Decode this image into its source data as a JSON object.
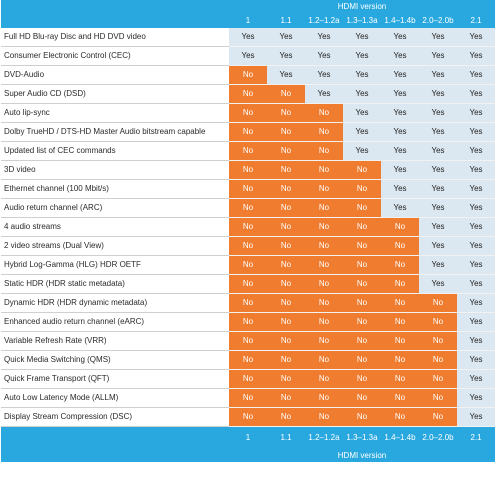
{
  "header_title": "HDMI version",
  "footer_title": "HDMI version",
  "versions": [
    "1",
    "1.1",
    "1.2–1.2a",
    "1.3–1.3a",
    "1.4–1.4b",
    "2.0–2.0b",
    "2.1"
  ],
  "colors": {
    "header": "#29a8df",
    "yes": "#dce8f1",
    "no": "#ef7c2f"
  },
  "rows": [
    {
      "feature": "Full HD Blu-ray Disc and HD DVD video",
      "values": [
        "Yes",
        "Yes",
        "Yes",
        "Yes",
        "Yes",
        "Yes",
        "Yes"
      ]
    },
    {
      "feature": "Consumer Electronic Control (CEC)",
      "values": [
        "Yes",
        "Yes",
        "Yes",
        "Yes",
        "Yes",
        "Yes",
        "Yes"
      ]
    },
    {
      "feature": "DVD-Audio",
      "values": [
        "No",
        "Yes",
        "Yes",
        "Yes",
        "Yes",
        "Yes",
        "Yes"
      ]
    },
    {
      "feature": "Super Audio CD (DSD)",
      "values": [
        "No",
        "No",
        "Yes",
        "Yes",
        "Yes",
        "Yes",
        "Yes"
      ]
    },
    {
      "feature": "Auto lip-sync",
      "values": [
        "No",
        "No",
        "No",
        "Yes",
        "Yes",
        "Yes",
        "Yes"
      ]
    },
    {
      "feature": "Dolby TrueHD / DTS-HD Master Audio bitstream capable",
      "values": [
        "No",
        "No",
        "No",
        "Yes",
        "Yes",
        "Yes",
        "Yes"
      ]
    },
    {
      "feature": "Updated list of CEC commands",
      "values": [
        "No",
        "No",
        "No",
        "Yes",
        "Yes",
        "Yes",
        "Yes"
      ]
    },
    {
      "feature": "3D video",
      "values": [
        "No",
        "No",
        "No",
        "No",
        "Yes",
        "Yes",
        "Yes"
      ]
    },
    {
      "feature": "Ethernet channel (100 Mbit/s)",
      "values": [
        "No",
        "No",
        "No",
        "No",
        "Yes",
        "Yes",
        "Yes"
      ]
    },
    {
      "feature": "Audio return channel (ARC)",
      "values": [
        "No",
        "No",
        "No",
        "No",
        "Yes",
        "Yes",
        "Yes"
      ]
    },
    {
      "feature": "4 audio streams",
      "values": [
        "No",
        "No",
        "No",
        "No",
        "No",
        "Yes",
        "Yes"
      ]
    },
    {
      "feature": "2 video streams (Dual View)",
      "values": [
        "No",
        "No",
        "No",
        "No",
        "No",
        "Yes",
        "Yes"
      ]
    },
    {
      "feature": "Hybrid Log-Gamma (HLG) HDR OETF",
      "values": [
        "No",
        "No",
        "No",
        "No",
        "No",
        "Yes",
        "Yes"
      ]
    },
    {
      "feature": "Static HDR (HDR static metadata)",
      "values": [
        "No",
        "No",
        "No",
        "No",
        "No",
        "Yes",
        "Yes"
      ]
    },
    {
      "feature": "Dynamic HDR (HDR dynamic metadata)",
      "values": [
        "No",
        "No",
        "No",
        "No",
        "No",
        "No",
        "Yes"
      ]
    },
    {
      "feature": "Enhanced audio return channel (eARC)",
      "values": [
        "No",
        "No",
        "No",
        "No",
        "No",
        "No",
        "Yes"
      ]
    },
    {
      "feature": "Variable Refresh Rate (VRR)",
      "values": [
        "No",
        "No",
        "No",
        "No",
        "No",
        "No",
        "Yes"
      ]
    },
    {
      "feature": "Quick Media Switching (QMS)",
      "values": [
        "No",
        "No",
        "No",
        "No",
        "No",
        "No",
        "Yes"
      ]
    },
    {
      "feature": "Quick Frame Transport (QFT)",
      "values": [
        "No",
        "No",
        "No",
        "No",
        "No",
        "No",
        "Yes"
      ]
    },
    {
      "feature": "Auto Low Latency Mode (ALLM)",
      "values": [
        "No",
        "No",
        "No",
        "No",
        "No",
        "No",
        "Yes"
      ]
    },
    {
      "feature": "Display Stream Compression (DSC)",
      "values": [
        "No",
        "No",
        "No",
        "No",
        "No",
        "No",
        "Yes"
      ]
    }
  ]
}
